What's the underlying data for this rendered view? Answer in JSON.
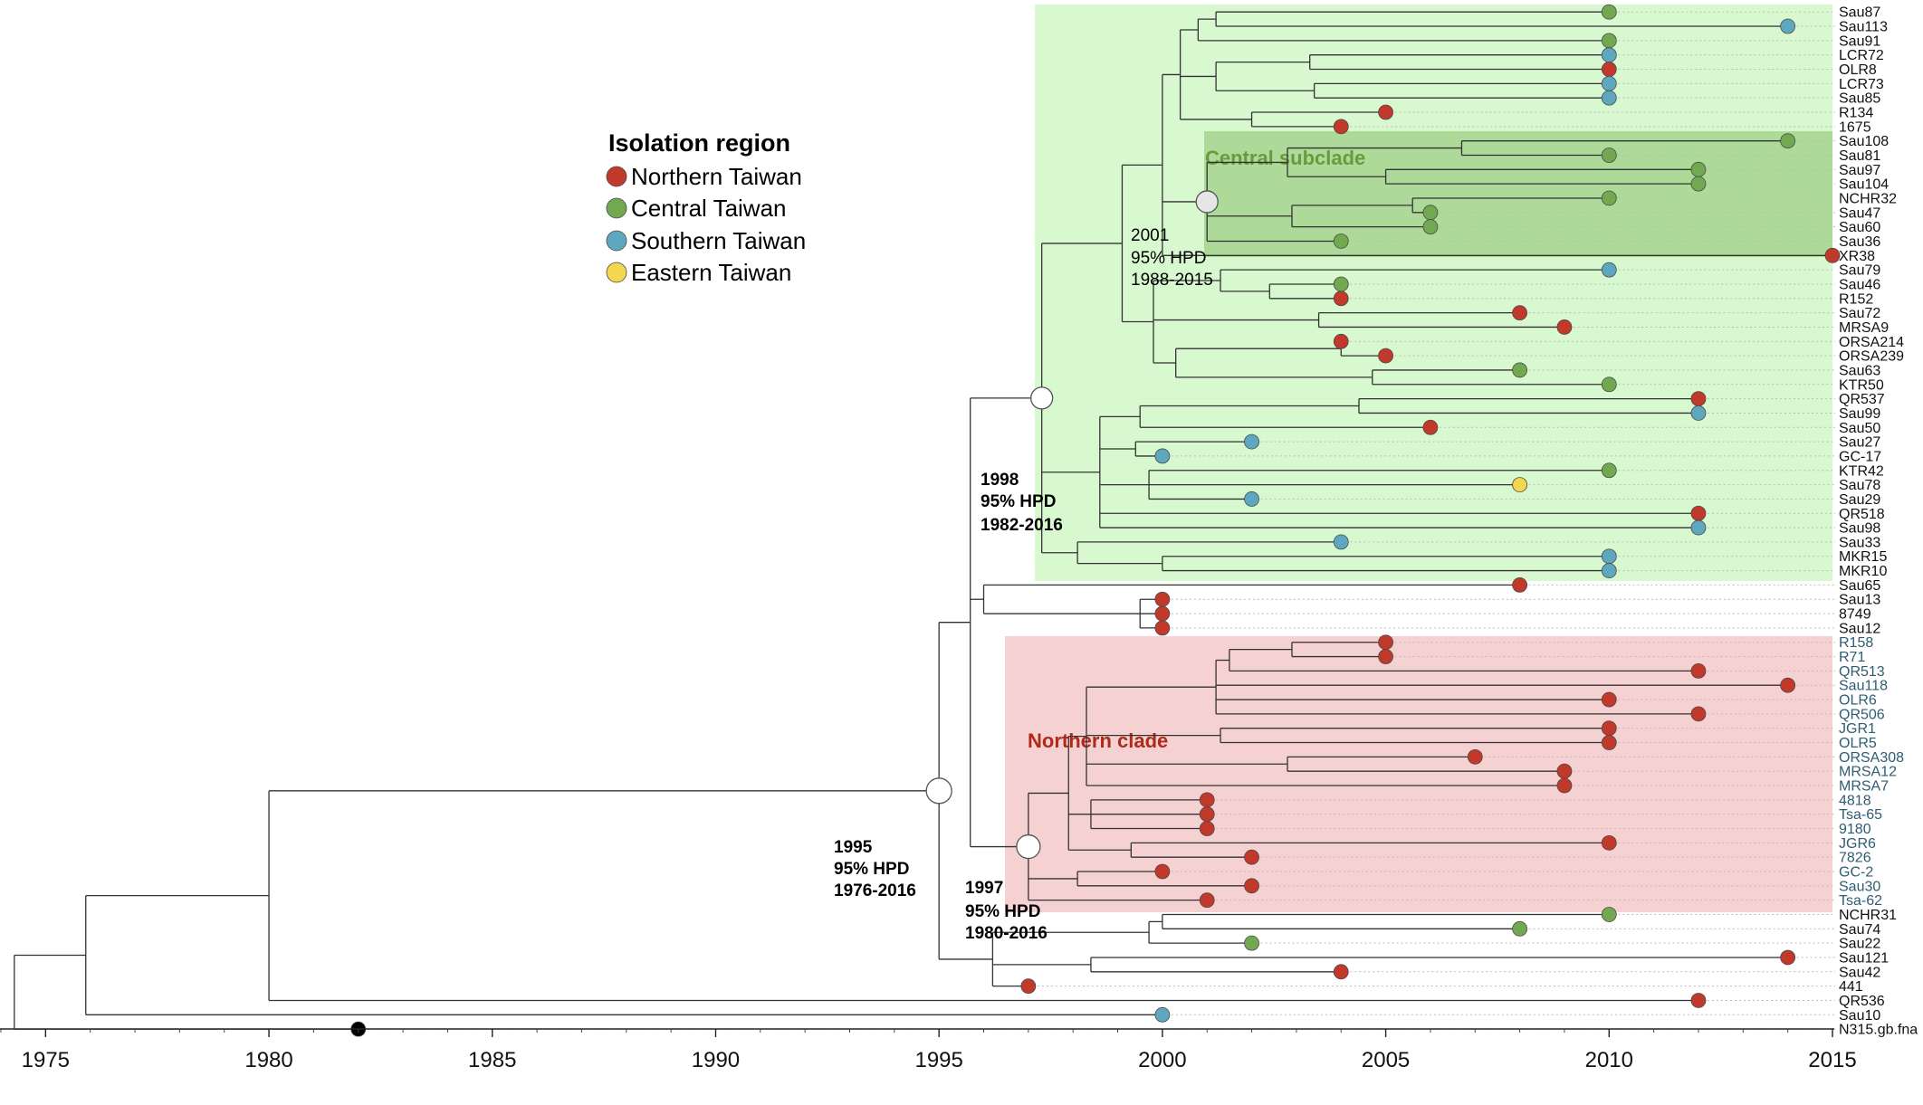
{
  "figure": {
    "type": "time-scaled phylogenetic tree"
  },
  "legend": {
    "title": "Isolation region",
    "entries": [
      {
        "key": "N",
        "label": "Northern Taiwan",
        "color": "#c0392b"
      },
      {
        "key": "C",
        "label": "Central Taiwan",
        "color": "#72a84f"
      },
      {
        "key": "S",
        "label": "Southern Taiwan",
        "color": "#5ea8bf"
      },
      {
        "key": "E",
        "label": "Eastern Taiwan",
        "color": "#f2d74f"
      }
    ],
    "root_color": "#000000"
  },
  "clades": {
    "green": {
      "color": "#b8f2a8",
      "span_years": [
        1997.3,
        2015
      ]
    },
    "central": {
      "label": "Central subclade",
      "color": "#9fd086",
      "text_color": "#6b9a3e",
      "span_years": [
        2001,
        2015
      ]
    },
    "northern": {
      "label": "Northern clade",
      "color": "#efb3b3",
      "text_color": "#b02a1c",
      "span_years": [
        1996.3,
        2015
      ]
    }
  },
  "nodes": [
    {
      "id": "n1995",
      "year": "1995",
      "hpd_label": "95% HPD",
      "hpd": "1976-2016",
      "bold": true
    },
    {
      "id": "n1997",
      "year": "1997",
      "hpd_label": "95% HPD",
      "hpd": "1980-2016",
      "bold": true
    },
    {
      "id": "n1998",
      "year": "1998",
      "hpd_label": "95% HPD",
      "hpd": "1982-2016",
      "bold": true
    },
    {
      "id": "n2001",
      "year": "2001",
      "hpd_label": "95% HPD",
      "hpd": "1988-2015",
      "bold": false
    }
  ],
  "axis": {
    "min": 1974,
    "max": 2015,
    "ticks": [
      {
        "value": 1975,
        "label": "1975"
      },
      {
        "value": 1980,
        "label": "1980"
      },
      {
        "value": 1985,
        "label": "1985"
      },
      {
        "value": 1990,
        "label": "1990"
      },
      {
        "value": 1995,
        "label": "1995"
      },
      {
        "value": 2000,
        "label": "2000"
      },
      {
        "value": 2005,
        "label": "2005"
      },
      {
        "value": 2010,
        "label": "2010"
      },
      {
        "value": 2015,
        "label": "2015"
      }
    ]
  },
  "tips": [
    {
      "name": "Sau87",
      "year": 2010,
      "region": "C"
    },
    {
      "name": "Sau113",
      "year": 2014,
      "region": "S"
    },
    {
      "name": "Sau91",
      "year": 2010,
      "region": "C"
    },
    {
      "name": "LCR72",
      "year": 2010,
      "region": "S"
    },
    {
      "name": "OLR8",
      "year": 2010,
      "region": "N"
    },
    {
      "name": "LCR73",
      "year": 2010,
      "region": "S"
    },
    {
      "name": "Sau85",
      "year": 2010,
      "region": "S"
    },
    {
      "name": "R134",
      "year": 2005,
      "region": "N"
    },
    {
      "name": "1675",
      "year": 2004,
      "region": "N"
    },
    {
      "name": "Sau108",
      "year": 2014,
      "region": "C"
    },
    {
      "name": "Sau81",
      "year": 2010,
      "region": "C"
    },
    {
      "name": "Sau97",
      "year": 2012,
      "region": "C"
    },
    {
      "name": "Sau104",
      "year": 2012,
      "region": "C"
    },
    {
      "name": "NCHR32",
      "year": 2010,
      "region": "C"
    },
    {
      "name": "Sau47",
      "year": 2006,
      "region": "C"
    },
    {
      "name": "Sau60",
      "year": 2006,
      "region": "C"
    },
    {
      "name": "Sau36",
      "year": 2004,
      "region": "C"
    },
    {
      "name": "XR38",
      "year": 2015,
      "region": "N"
    },
    {
      "name": "Sau79",
      "year": 2010,
      "region": "S"
    },
    {
      "name": "Sau46",
      "year": 2004,
      "region": "C"
    },
    {
      "name": "R152",
      "year": 2004,
      "region": "N"
    },
    {
      "name": "Sau72",
      "year": 2008,
      "region": "N"
    },
    {
      "name": "MRSA9",
      "year": 2009,
      "region": "N"
    },
    {
      "name": "ORSA214",
      "year": 2004,
      "region": "N"
    },
    {
      "name": "ORSA239",
      "year": 2005,
      "region": "N"
    },
    {
      "name": "Sau63",
      "year": 2008,
      "region": "C"
    },
    {
      "name": "KTR50",
      "year": 2010,
      "region": "C"
    },
    {
      "name": "QR537",
      "year": 2012,
      "region": "N"
    },
    {
      "name": "Sau99",
      "year": 2012,
      "region": "S"
    },
    {
      "name": "Sau50",
      "year": 2006,
      "region": "N"
    },
    {
      "name": "Sau27",
      "year": 2002,
      "region": "S"
    },
    {
      "name": "GC-17",
      "year": 2000,
      "region": "S"
    },
    {
      "name": "KTR42",
      "year": 2010,
      "region": "C"
    },
    {
      "name": "Sau78",
      "year": 2008,
      "region": "E"
    },
    {
      "name": "Sau29",
      "year": 2002,
      "region": "S"
    },
    {
      "name": "QR518",
      "year": 2012,
      "region": "N"
    },
    {
      "name": "Sau98",
      "year": 2012,
      "region": "S"
    },
    {
      "name": "Sau33",
      "year": 2004,
      "region": "S"
    },
    {
      "name": "MKR15",
      "year": 2010,
      "region": "S"
    },
    {
      "name": "MKR10",
      "year": 2010,
      "region": "S"
    },
    {
      "name": "Sau65",
      "year": 2008,
      "region": "N"
    },
    {
      "name": "Sau13",
      "year": 2000,
      "region": "N"
    },
    {
      "name": "8749",
      "year": 2000,
      "region": "N"
    },
    {
      "name": "Sau12",
      "year": 2000,
      "region": "N"
    },
    {
      "name": "R158",
      "year": 2005,
      "region": "N"
    },
    {
      "name": "R71",
      "year": 2005,
      "region": "N"
    },
    {
      "name": "QR513",
      "year": 2012,
      "region": "N"
    },
    {
      "name": "Sau118",
      "year": 2014,
      "region": "N"
    },
    {
      "name": "OLR6",
      "year": 2010,
      "region": "N"
    },
    {
      "name": "QR506",
      "year": 2012,
      "region": "N"
    },
    {
      "name": "JGR1",
      "year": 2010,
      "region": "N"
    },
    {
      "name": "OLR5",
      "year": 2010,
      "region": "N"
    },
    {
      "name": "ORSA308",
      "year": 2007,
      "region": "N"
    },
    {
      "name": "MRSA12",
      "year": 2009,
      "region": "N"
    },
    {
      "name": "MRSA7",
      "year": 2009,
      "region": "N"
    },
    {
      "name": "4818",
      "year": 2001,
      "region": "N"
    },
    {
      "name": "Tsa-65",
      "year": 2001,
      "region": "N"
    },
    {
      "name": "9180",
      "year": 2001,
      "region": "N"
    },
    {
      "name": "JGR6",
      "year": 2010,
      "region": "N"
    },
    {
      "name": "7826",
      "year": 2002,
      "region": "N"
    },
    {
      "name": "GC-2",
      "year": 2000,
      "region": "N"
    },
    {
      "name": "Sau30",
      "year": 2002,
      "region": "N"
    },
    {
      "name": "Tsa-62",
      "year": 2001,
      "region": "N"
    },
    {
      "name": "NCHR31",
      "year": 2010,
      "region": "C"
    },
    {
      "name": "Sau74",
      "year": 2008,
      "region": "C"
    },
    {
      "name": "Sau22",
      "year": 2002,
      "region": "C"
    },
    {
      "name": "Sau121",
      "year": 2014,
      "region": "N"
    },
    {
      "name": "Sau42",
      "year": 2004,
      "region": "N"
    },
    {
      "name": "441",
      "year": 1997,
      "region": "N"
    },
    {
      "name": "QR536",
      "year": 2012,
      "region": "N"
    },
    {
      "name": "Sau10",
      "year": 2000,
      "region": "S"
    },
    {
      "name": "N315.gb.fna",
      "year": 1982,
      "region": "root"
    }
  ]
}
